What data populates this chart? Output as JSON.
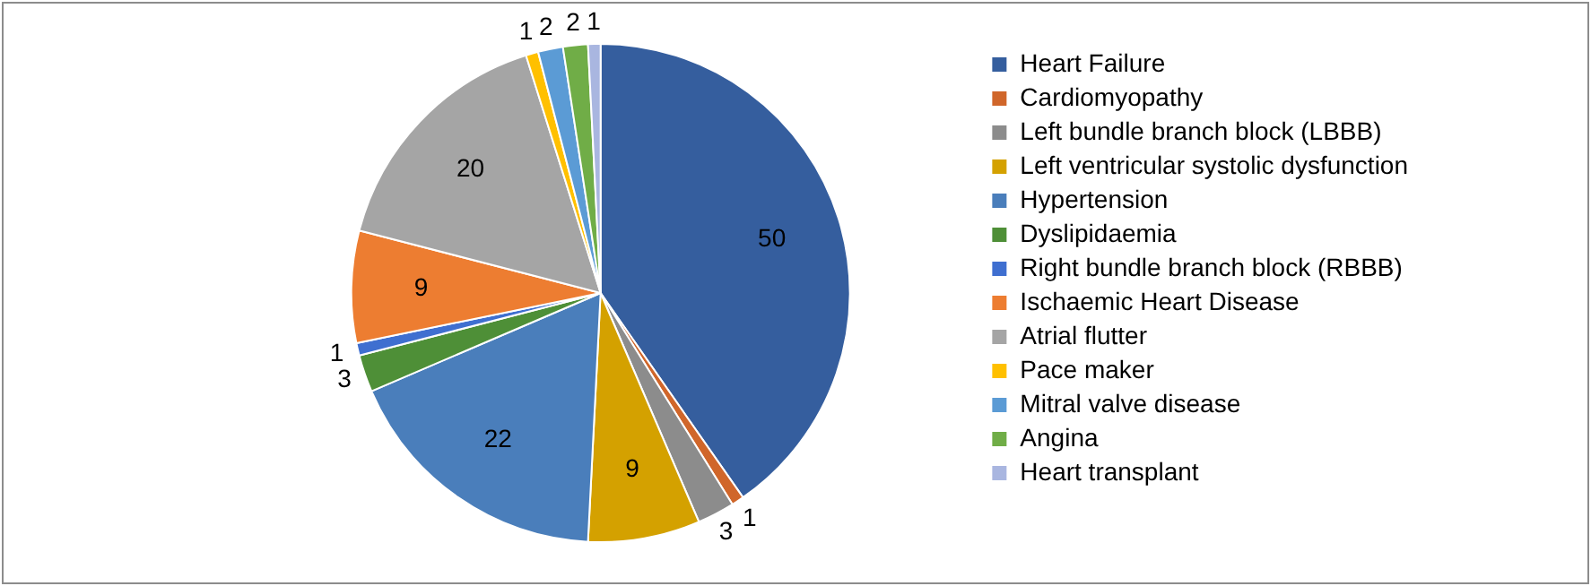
{
  "chart_data": {
    "type": "pie",
    "categories": [
      "Heart Failure",
      "Cardiomyopathy",
      "Left bundle branch block (LBBB)",
      "Left ventricular systolic dysfunction",
      "Hypertension",
      "Dyslipidaemia",
      "Right bundle branch block (RBBB)",
      "Ischaemic Heart Disease",
      "Atrial flutter",
      "Pace maker",
      "Mitral valve disease",
      "Angina",
      "Heart transplant"
    ],
    "values": [
      50,
      1,
      3,
      9,
      22,
      3,
      1,
      9,
      20,
      1,
      2,
      2,
      1
    ],
    "colors": [
      "#355e9e",
      "#d0662a",
      "#8c8c8c",
      "#d4a100",
      "#4a7ebb",
      "#4e8f37",
      "#3f6fd0",
      "#ed7d31",
      "#a5a5a5",
      "#ffc000",
      "#5b9bd5",
      "#70ad47",
      "#a9b6e0"
    ],
    "data_labels": true,
    "legend": "right"
  }
}
